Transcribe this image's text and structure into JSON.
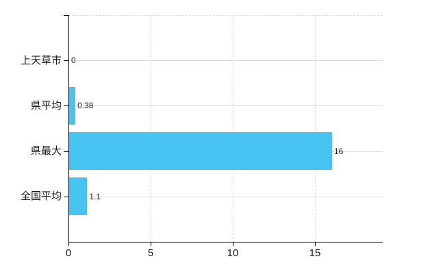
{
  "chart_data": {
    "type": "bar",
    "orientation": "horizontal",
    "title": "",
    "categories": [
      "上天草市",
      "県平均",
      "県最大",
      "全国平均"
    ],
    "values": [
      0,
      0.38,
      16,
      1.1
    ],
    "value_labels": [
      "0",
      "0.38",
      "16",
      "1.1"
    ],
    "x_ticks": [
      0,
      5,
      10,
      15
    ],
    "x_tick_labels": [
      "0",
      "5",
      "10",
      "15"
    ],
    "xlim": [
      0,
      19.1
    ],
    "grid": "on",
    "legend_position": "none",
    "colors": {
      "bar": "#46c3f0",
      "h_gridline": "#d7ded7",
      "v_gridline": "#dcd5dc",
      "axis": "#000000",
      "text": "#1a1a1a",
      "background": "#ffffff"
    }
  }
}
